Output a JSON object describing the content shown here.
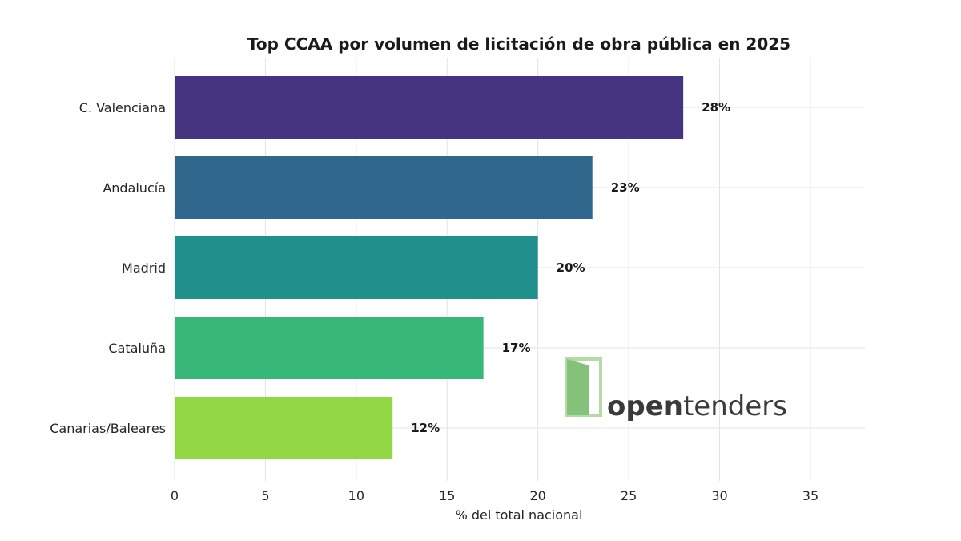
{
  "chart_data": {
    "type": "bar",
    "orientation": "horizontal",
    "title": "Top CCAA por volumen de licitación de obra pública en 2025",
    "xlabel": "% del total nacional",
    "ylabel": "",
    "categories": [
      "C. Valenciana",
      "Andalucía",
      "Madrid",
      "Cataluña",
      "Canarias/Baleares"
    ],
    "values": [
      28,
      23,
      20,
      17,
      12
    ],
    "data_labels": [
      "28%",
      "23%",
      "20%",
      "17%",
      "12%"
    ],
    "bar_colors": [
      "#463480",
      "#30688d",
      "#20908c",
      "#38b878",
      "#91d743"
    ],
    "xlim": [
      0,
      38
    ],
    "xticks": [
      0,
      5,
      10,
      15,
      20,
      25,
      30,
      35
    ],
    "grid": true,
    "legend": "none"
  },
  "logo": {
    "text_bold": "open",
    "text_regular": "tenders",
    "colors": {
      "door_light": "#b6d9a8",
      "door_dark": "#86c17a"
    }
  }
}
